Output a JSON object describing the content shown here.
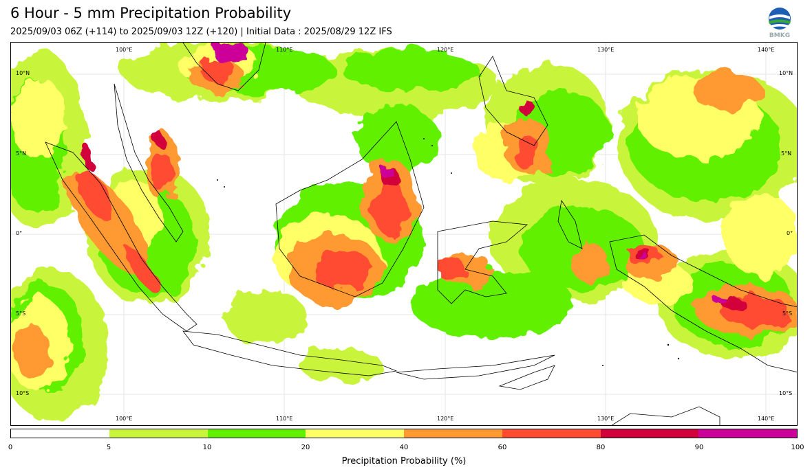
{
  "title": "6 Hour - 5 mm Precipitation Probability",
  "subtitle": "2025/09/03 06Z (+114) to 2025/09/03 12Z (+120) | Initial Data : 2025/08/29 12Z IFS",
  "logo": {
    "icon": "bmkg-logo",
    "text": "BMKG"
  },
  "map": {
    "lon_ticks": [
      "100°E",
      "110°E",
      "120°E",
      "130°E",
      "140°E"
    ],
    "lat_ticks": [
      "10°N",
      "5°N",
      "0°",
      "5°S",
      "10°S"
    ],
    "colors": {
      "0-5": "#ffffff",
      "5-10": "#c8f53a",
      "10-20": "#60f000",
      "20-40": "#ffff66",
      "40-60": "#ff9a33",
      "60-80": "#ff4b30",
      "80-90": "#d2003a",
      "90-100": "#cc0099"
    }
  },
  "colorbar": {
    "ticks": [
      "0",
      "5",
      "10",
      "20",
      "40",
      "60",
      "80",
      "90",
      "100"
    ],
    "colors": [
      "#ffffff",
      "#c8f53a",
      "#60f000",
      "#ffff66",
      "#ff9a33",
      "#ff4b30",
      "#d2003a",
      "#cc0099"
    ],
    "label": "Precipitation Probability (%)"
  }
}
